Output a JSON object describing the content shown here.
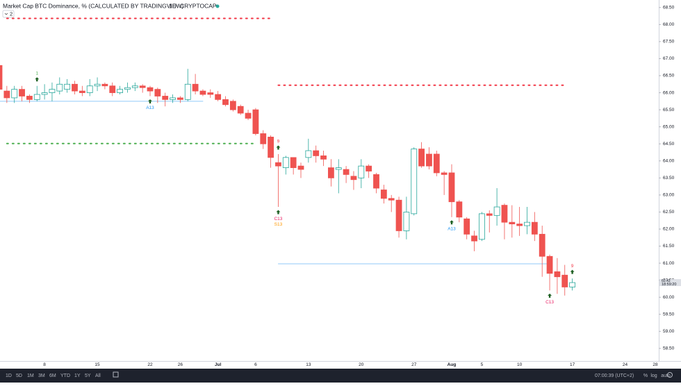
{
  "chart_data": {
    "type": "candlestick",
    "title": "Market Cap BTC Dominance, % (CALCULATED BY TRADINGVIEW)",
    "interval": "1D",
    "exchange": "CRYPTOCAP",
    "indicator_count": "2",
    "categories": [
      null,
      null,
      null,
      null,
      null,
      null,
      "8",
      null,
      null,
      null,
      null,
      null,
      null,
      "15",
      null,
      null,
      null,
      null,
      null,
      null,
      "22",
      null,
      null,
      null,
      "26",
      null,
      null,
      null,
      null,
      "Jul",
      null,
      null,
      null,
      null,
      "6",
      null,
      null,
      null,
      null,
      null,
      null,
      "13",
      null,
      null,
      null,
      null,
      null,
      null,
      "20",
      null,
      null,
      null,
      null,
      null,
      null,
      "27",
      null,
      null,
      null,
      null,
      "Aug",
      null,
      null,
      null,
      "5",
      null,
      null,
      null,
      null,
      "10",
      null,
      null,
      null,
      null,
      null,
      null,
      "17",
      null,
      null,
      null,
      null,
      null,
      null,
      "24",
      null,
      null,
      null,
      "28"
    ],
    "open": [
      66.8,
      66.05,
      65.85,
      66.1,
      65.9,
      65.8,
      65.95,
      66.0,
      66.05,
      66.1,
      66.25,
      66.05,
      66.0,
      66.2,
      66.25,
      66.2,
      66.0,
      66.1,
      66.15,
      66.2,
      66.15,
      66.1,
      65.9,
      65.8,
      65.85,
      65.8,
      66.25,
      66.05,
      66.0,
      65.95,
      65.8,
      65.75,
      65.6,
      65.4,
      65.5,
      64.8,
      64.7,
      63.95,
      63.8,
      64.1,
      63.85,
      64.1,
      64.3,
      64.15,
      63.8,
      63.75,
      63.75,
      63.55,
      63.5,
      63.85,
      63.6,
      63.15,
      62.9,
      62.85,
      61.95,
      62.45,
      64.35,
      64.2,
      64.2,
      63.65,
      63.65,
      62.8,
      62.3,
      61.8,
      61.7,
      62.45,
      62.4,
      62.7,
      62.2,
      62.15,
      62.1,
      62.2,
      61.85,
      61.2,
      60.75,
      60.65,
      60.3,
      null,
      null,
      null,
      null,
      null,
      null,
      null,
      null,
      null,
      null,
      null
    ],
    "high": [
      66.85,
      66.2,
      66.2,
      66.2,
      65.95,
      66.2,
      66.25,
      66.3,
      66.45,
      66.4,
      66.35,
      66.2,
      66.4,
      66.45,
      66.3,
      66.3,
      66.2,
      66.3,
      66.3,
      66.25,
      66.2,
      66.15,
      66.0,
      65.95,
      65.9,
      66.7,
      66.55,
      66.1,
      66.1,
      66.05,
      65.9,
      65.8,
      65.65,
      65.5,
      65.55,
      64.9,
      64.75,
      64.2,
      64.15,
      64.1,
      63.95,
      64.65,
      64.45,
      64.3,
      64.05,
      64.05,
      63.85,
      63.7,
      64.05,
      63.9,
      63.65,
      63.3,
      63.0,
      62.95,
      62.95,
      64.4,
      64.55,
      64.4,
      64.3,
      63.7,
      63.9,
      62.85,
      62.35,
      61.95,
      62.5,
      62.55,
      63.2,
      62.75,
      62.7,
      62.65,
      62.65,
      62.5,
      62.1,
      61.25,
      61.15,
      60.95,
      60.55,
      null,
      null,
      null,
      null,
      null,
      null,
      null,
      null,
      null,
      null,
      null
    ],
    "low": [
      65.9,
      65.7,
      65.7,
      65.75,
      65.7,
      65.75,
      65.8,
      65.75,
      65.95,
      66.0,
      65.95,
      65.9,
      65.9,
      66.05,
      66.1,
      65.9,
      65.95,
      66.0,
      66.05,
      66.0,
      65.9,
      65.7,
      65.6,
      65.7,
      65.7,
      65.75,
      65.95,
      65.9,
      65.85,
      65.75,
      65.6,
      65.45,
      65.35,
      65.2,
      64.75,
      64.35,
      63.8,
      62.65,
      63.6,
      63.6,
      63.5,
      63.95,
      63.95,
      63.85,
      63.25,
      63.05,
      63.35,
      63.15,
      63.2,
      63.5,
      63.05,
      62.75,
      62.5,
      61.75,
      61.7,
      62.4,
      63.8,
      63.75,
      63.55,
      63.0,
      62.35,
      62.2,
      61.7,
      61.35,
      61.65,
      61.9,
      62.1,
      61.7,
      61.75,
      61.8,
      61.85,
      61.65,
      60.6,
      60.2,
      60.1,
      60.05,
      60.2,
      null,
      null,
      null,
      null,
      null,
      null,
      null,
      null,
      null,
      null,
      null
    ],
    "close": [
      66.1,
      65.85,
      66.1,
      65.9,
      65.8,
      65.95,
      66.0,
      66.1,
      66.25,
      66.25,
      66.05,
      66.0,
      66.2,
      66.25,
      66.2,
      66.0,
      66.1,
      66.15,
      66.2,
      66.15,
      66.05,
      65.9,
      65.8,
      65.85,
      65.8,
      66.25,
      66.05,
      65.95,
      65.95,
      65.8,
      65.65,
      65.5,
      65.4,
      65.25,
      64.8,
      64.5,
      64.1,
      63.85,
      64.1,
      63.8,
      63.75,
      64.3,
      64.15,
      64.05,
      63.5,
      63.8,
      63.6,
      63.45,
      63.85,
      63.7,
      63.2,
      62.9,
      62.85,
      61.95,
      62.5,
      64.35,
      63.85,
      63.85,
      63.65,
      63.6,
      62.8,
      62.35,
      61.85,
      61.65,
      62.45,
      62.4,
      62.65,
      62.2,
      62.15,
      62.1,
      62.2,
      61.85,
      61.2,
      60.7,
      60.6,
      60.3,
      60.43,
      null,
      null,
      null,
      null,
      null,
      null,
      null,
      null,
      null,
      null,
      null
    ],
    "up_color": "#26a69a",
    "down_color": "#ef5350",
    "ylim": [
      58.13,
      68.72
    ],
    "yticks": [
      {
        "value": 58.5,
        "label": "58.50"
      },
      {
        "value": 59,
        "label": "59.00"
      },
      {
        "value": 59.5,
        "label": "59.50"
      },
      {
        "value": 60,
        "label": "60.00"
      },
      {
        "value": 60.5,
        "label": "60.50"
      },
      {
        "value": 61,
        "label": "61.00"
      },
      {
        "value": 61.5,
        "label": "61.50"
      },
      {
        "value": 62,
        "label": "62.00"
      },
      {
        "value": 62.5,
        "label": "62.50"
      },
      {
        "value": 63,
        "label": "63.00"
      },
      {
        "value": 63.5,
        "label": "63.50"
      },
      {
        "value": 64,
        "label": "64.00"
      },
      {
        "value": 64.5,
        "label": "64.50"
      },
      {
        "value": 65,
        "label": "65.00"
      },
      {
        "value": 65.5,
        "label": "65.50"
      },
      {
        "value": 66,
        "label": "66.00"
      },
      {
        "value": 66.5,
        "label": "66.50"
      },
      {
        "value": 67,
        "label": "67.00"
      },
      {
        "value": 67.5,
        "label": "67.50"
      },
      {
        "value": 68,
        "label": "68.00"
      },
      {
        "value": 68.5,
        "label": "68.50"
      }
    ],
    "last_price": 60.43,
    "countdown": "18:59:20",
    "levels": [
      {
        "value": 68.18,
        "color": "#f23645",
        "style": "dotted",
        "start": 1,
        "end": 36
      },
      {
        "value": 66.22,
        "color": "#f23645",
        "style": "dotted",
        "start": 37,
        "end": 75
      },
      {
        "value": 64.51,
        "color": "#4caf50",
        "style": "dotted",
        "start": 1,
        "end": 34
      },
      {
        "value": 65.75,
        "color": "#90caf9",
        "style": "solid",
        "start": 0,
        "end": 27
      },
      {
        "value": 60.98,
        "color": "#90caf9",
        "style": "solid",
        "start": 37,
        "end": 73
      }
    ],
    "annotations": [
      {
        "text": "1",
        "index": 5,
        "side": "above",
        "row": 0,
        "color": "#4caf50"
      },
      {
        "text": "A13",
        "index": 20,
        "side": "below",
        "row": 0,
        "color": "#2196f3"
      },
      {
        "text": "9",
        "index": 37,
        "side": "above",
        "row": 0,
        "color": "#f23645"
      },
      {
        "text": "C13",
        "index": 37,
        "side": "below",
        "row": 0,
        "color": "#e91e63"
      },
      {
        "text": "S13",
        "index": 37,
        "side": "below",
        "row": 1,
        "color": "#ff9800"
      },
      {
        "text": "A13",
        "index": 60,
        "side": "below",
        "row": 0,
        "color": "#2196f3"
      },
      {
        "text": "9",
        "index": 76,
        "side": "above",
        "row": 0,
        "color": "#f23645"
      },
      {
        "text": "C13",
        "index": 73,
        "side": "below",
        "row": 0,
        "color": "#e91e63"
      }
    ],
    "ranges": [
      "1D",
      "5D",
      "1M",
      "3M",
      "6M",
      "YTD",
      "1Y",
      "5Y",
      "All"
    ],
    "clock": "07:00:39 (UTC+2)",
    "scale_options": [
      "%",
      "log",
      "auto"
    ]
  }
}
